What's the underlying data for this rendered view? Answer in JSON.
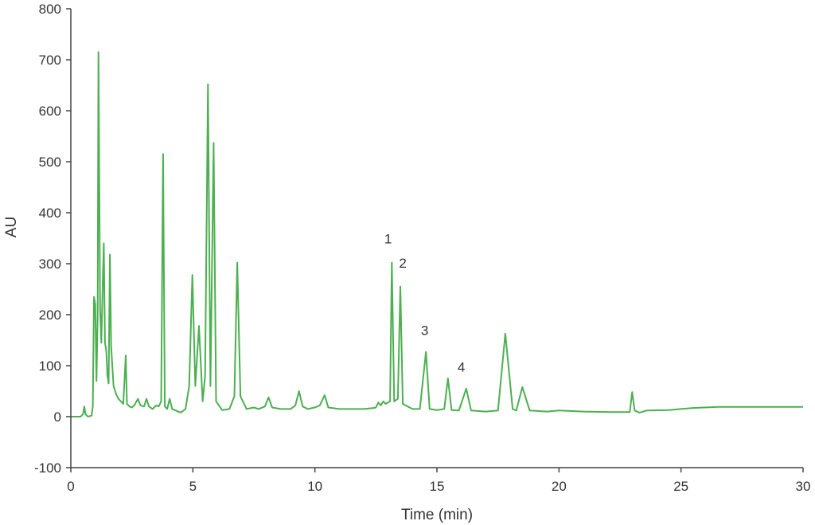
{
  "chart_data": {
    "type": "line",
    "title": "",
    "xlabel": "Time (min)",
    "ylabel": "AU",
    "xlim": [
      0,
      30
    ],
    "ylim": [
      -100,
      800
    ],
    "grid": false,
    "legend": null,
    "x_ticks": [
      0,
      5,
      10,
      15,
      20,
      25,
      30
    ],
    "y_ticks": [
      -100,
      0,
      100,
      200,
      300,
      400,
      500,
      600,
      700,
      800
    ],
    "line_color": "#4caf50",
    "series": [
      {
        "name": "Chromatogram",
        "points": [
          [
            0.0,
            0
          ],
          [
            0.4,
            0
          ],
          [
            0.5,
            5
          ],
          [
            0.55,
            20
          ],
          [
            0.6,
            5
          ],
          [
            0.7,
            0
          ],
          [
            0.85,
            2
          ],
          [
            0.9,
            20
          ],
          [
            0.95,
            235
          ],
          [
            1.0,
            220
          ],
          [
            1.05,
            70
          ],
          [
            1.1,
            200
          ],
          [
            1.13,
            715
          ],
          [
            1.2,
            210
          ],
          [
            1.25,
            145
          ],
          [
            1.3,
            250
          ],
          [
            1.35,
            340
          ],
          [
            1.4,
            145
          ],
          [
            1.45,
            130
          ],
          [
            1.5,
            80
          ],
          [
            1.55,
            65
          ],
          [
            1.6,
            318
          ],
          [
            1.65,
            140
          ],
          [
            1.7,
            100
          ],
          [
            1.75,
            60
          ],
          [
            1.85,
            45
          ],
          [
            1.95,
            35
          ],
          [
            2.05,
            30
          ],
          [
            2.15,
            25
          ],
          [
            2.25,
            120
          ],
          [
            2.3,
            25
          ],
          [
            2.4,
            20
          ],
          [
            2.5,
            18
          ],
          [
            2.6,
            22
          ],
          [
            2.75,
            35
          ],
          [
            2.85,
            22
          ],
          [
            3.0,
            20
          ],
          [
            3.1,
            35
          ],
          [
            3.2,
            20
          ],
          [
            3.35,
            15
          ],
          [
            3.5,
            22
          ],
          [
            3.6,
            20
          ],
          [
            3.7,
            30
          ],
          [
            3.78,
            515
          ],
          [
            3.85,
            20
          ],
          [
            3.95,
            15
          ],
          [
            4.05,
            35
          ],
          [
            4.15,
            15
          ],
          [
            4.3,
            12
          ],
          [
            4.5,
            8
          ],
          [
            4.7,
            15
          ],
          [
            4.85,
            60
          ],
          [
            4.98,
            278
          ],
          [
            5.1,
            60
          ],
          [
            5.25,
            178
          ],
          [
            5.4,
            30
          ],
          [
            5.5,
            80
          ],
          [
            5.62,
            652
          ],
          [
            5.72,
            60
          ],
          [
            5.85,
            537
          ],
          [
            5.95,
            30
          ],
          [
            6.2,
            13
          ],
          [
            6.5,
            15
          ],
          [
            6.7,
            40
          ],
          [
            6.82,
            302
          ],
          [
            6.95,
            40
          ],
          [
            7.2,
            15
          ],
          [
            7.5,
            18
          ],
          [
            7.7,
            15
          ],
          [
            7.95,
            20
          ],
          [
            8.1,
            38
          ],
          [
            8.25,
            18
          ],
          [
            8.6,
            15
          ],
          [
            9.0,
            15
          ],
          [
            9.2,
            22
          ],
          [
            9.35,
            50
          ],
          [
            9.5,
            20
          ],
          [
            9.7,
            15
          ],
          [
            10.0,
            18
          ],
          [
            10.2,
            22
          ],
          [
            10.4,
            42
          ],
          [
            10.55,
            18
          ],
          [
            11.0,
            15
          ],
          [
            12.0,
            15
          ],
          [
            12.4,
            17
          ],
          [
            12.5,
            18
          ],
          [
            12.6,
            28
          ],
          [
            12.7,
            22
          ],
          [
            12.8,
            30
          ],
          [
            12.9,
            25
          ],
          [
            13.0,
            28
          ],
          [
            13.08,
            30
          ],
          [
            13.15,
            302
          ],
          [
            13.25,
            30
          ],
          [
            13.4,
            35
          ],
          [
            13.5,
            255
          ],
          [
            13.6,
            25
          ],
          [
            14.0,
            15
          ],
          [
            14.3,
            15
          ],
          [
            14.55,
            127
          ],
          [
            14.7,
            15
          ],
          [
            15.0,
            13
          ],
          [
            15.3,
            15
          ],
          [
            15.45,
            75
          ],
          [
            15.6,
            13
          ],
          [
            15.9,
            12
          ],
          [
            16.2,
            55
          ],
          [
            16.4,
            12
          ],
          [
            17.0,
            10
          ],
          [
            17.5,
            12
          ],
          [
            17.8,
            163
          ],
          [
            18.1,
            15
          ],
          [
            18.25,
            12
          ],
          [
            18.5,
            58
          ],
          [
            18.8,
            12
          ],
          [
            19.5,
            10
          ],
          [
            20.0,
            12
          ],
          [
            21.0,
            10
          ],
          [
            22.0,
            9
          ],
          [
            22.9,
            9
          ],
          [
            23.0,
            48
          ],
          [
            23.1,
            12
          ],
          [
            23.3,
            8
          ],
          [
            23.6,
            12
          ],
          [
            24.5,
            13
          ],
          [
            25.0,
            15
          ],
          [
            25.5,
            17
          ],
          [
            26.5,
            19
          ],
          [
            28.0,
            19
          ],
          [
            30.0,
            19
          ]
        ]
      }
    ],
    "annotations": [
      {
        "text": "1",
        "x": 13.0,
        "y": 340
      },
      {
        "text": "2",
        "x": 13.6,
        "y": 292
      },
      {
        "text": "3",
        "x": 14.5,
        "y": 160
      },
      {
        "text": "4",
        "x": 16.0,
        "y": 88
      }
    ]
  }
}
